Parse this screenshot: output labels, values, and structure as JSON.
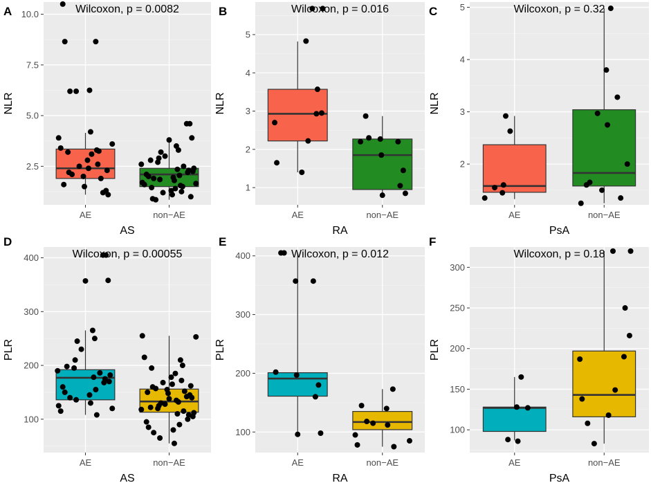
{
  "chart_data": [
    {
      "type": "box",
      "panel": "A",
      "annotation": "Wilcoxon, p = 0.0082",
      "xlabel": "AS",
      "ylabel": "NLR",
      "ylim": [
        0.6,
        10.6
      ],
      "yticks": [
        2.5,
        5.0,
        7.5,
        10.0
      ],
      "ytick_labels": [
        "2.5",
        "5.0",
        "7.5",
        "10.0"
      ],
      "categories": [
        "AE",
        "non−AE"
      ],
      "colors": [
        "#F8634B",
        "#228B22"
      ],
      "boxes": [
        {
          "q1": 1.9,
          "median": 2.4,
          "q3": 3.35,
          "wlo": 1.1,
          "whi": 4.15
        },
        {
          "q1": 1.5,
          "median": 2.1,
          "q3": 2.4,
          "wlo": 0.85,
          "whi": 3.7
        }
      ],
      "points": [
        [
          10.5,
          8.65,
          8.65,
          6.25,
          6.2,
          6.2,
          4.2,
          3.9,
          3.6,
          3.4,
          3.3,
          3.25,
          3.2,
          3.1,
          2.8,
          2.6,
          2.5,
          2.4,
          2.3,
          2.2,
          2.1,
          2.0,
          1.9,
          1.6,
          1.5,
          1.3,
          1.2,
          1.1
        ],
        [
          4.6,
          4.6,
          3.9,
          3.8,
          3.5,
          3.3,
          3.2,
          3.0,
          2.9,
          2.8,
          2.7,
          2.6,
          2.5,
          2.4,
          2.35,
          2.3,
          2.25,
          2.2,
          2.1,
          2.05,
          2.0,
          1.95,
          1.9,
          1.85,
          1.8,
          1.7,
          1.65,
          1.6,
          1.55,
          1.5,
          1.45,
          1.4,
          1.3,
          1.25,
          1.2,
          1.1,
          1.0,
          0.9,
          0.85
        ]
      ]
    },
    {
      "type": "box",
      "panel": "B",
      "annotation": "Wilcoxon, p = 0.016",
      "xlabel": "RA",
      "ylabel": "NLR",
      "ylim": [
        0.55,
        5.85
      ],
      "yticks": [
        1,
        2,
        3,
        4,
        5
      ],
      "ytick_labels": [
        "1",
        "2",
        "3",
        "4",
        "5"
      ],
      "categories": [
        "AE",
        "non−AE"
      ],
      "colors": [
        "#F8634B",
        "#228B22"
      ],
      "boxes": [
        {
          "q1": 2.22,
          "median": 2.93,
          "q3": 3.57,
          "wlo": 1.4,
          "whi": 4.82
        },
        {
          "q1": 0.95,
          "median": 1.85,
          "q3": 2.27,
          "wlo": 0.78,
          "whi": 2.87
        }
      ],
      "points": [
        [
          5.68,
          5.68,
          4.83,
          3.57,
          2.95,
          2.93,
          2.7,
          2.22,
          1.65,
          1.4
        ],
        [
          2.87,
          2.3,
          2.27,
          2.2,
          2.2,
          1.85,
          1.45,
          1.05,
          0.85,
          0.8
        ]
      ]
    },
    {
      "type": "box",
      "panel": "C",
      "annotation": "Wilcoxon, p = 0.32",
      "xlabel": "PsA",
      "ylabel": "NLR",
      "ylim": [
        1.22,
        5.1
      ],
      "yticks": [
        2,
        3,
        4,
        5
      ],
      "ytick_labels": [
        "2",
        "3",
        "4",
        "5"
      ],
      "categories": [
        "AE",
        "non−AE"
      ],
      "colors": [
        "#F8634B",
        "#228B22"
      ],
      "boxes": [
        {
          "q1": 1.46,
          "median": 1.58,
          "q3": 2.37,
          "wlo": 1.33,
          "whi": 2.92
        },
        {
          "q1": 1.58,
          "median": 1.83,
          "q3": 3.04,
          "wlo": 1.25,
          "whi": 4.98
        }
      ],
      "points": [
        [
          2.92,
          2.63,
          1.6,
          1.55,
          1.45,
          1.35
        ],
        [
          4.98,
          3.8,
          3.28,
          2.97,
          2.75,
          2.0,
          1.6,
          1.65,
          1.5,
          1.35,
          1.25
        ]
      ]
    },
    {
      "type": "box",
      "panel": "D",
      "annotation": "Wilcoxon, p = 0.00055",
      "xlabel": "AS",
      "ylabel": "PLR",
      "ylim": [
        38,
        420
      ],
      "yticks": [
        100,
        200,
        300,
        400
      ],
      "ytick_labels": [
        "100",
        "200",
        "300",
        "400"
      ],
      "categories": [
        "AE",
        "non−AE"
      ],
      "colors": [
        "#00AFBB",
        "#E7B800"
      ],
      "boxes": [
        {
          "q1": 136,
          "median": 177,
          "q3": 192,
          "wlo": 108,
          "whi": 265
        },
        {
          "q1": 113,
          "median": 133,
          "q3": 156,
          "wlo": 55,
          "whi": 255
        }
      ],
      "points": [
        [
          405,
          405,
          358,
          357,
          265,
          250,
          245,
          230,
          210,
          198,
          195,
          190,
          186,
          182,
          178,
          175,
          170,
          168,
          160,
          155,
          150,
          145,
          140,
          136,
          130,
          125,
          120,
          115,
          108
        ],
        [
          255,
          253,
          215,
          210,
          200,
          195,
          185,
          178,
          172,
          168,
          165,
          162,
          160,
          157,
          155,
          152,
          150,
          148,
          145,
          142,
          140,
          138,
          135,
          132,
          130,
          128,
          125,
          122,
          120,
          118,
          115,
          112,
          110,
          108,
          105,
          100,
          95,
          90,
          85,
          80,
          75,
          65,
          55
        ]
      ]
    },
    {
      "type": "box",
      "panel": "E",
      "annotation": "Wilcoxon, p = 0.012",
      "xlabel": "RA",
      "ylabel": "PLR",
      "ylim": [
        65,
        415
      ],
      "yticks": [
        100,
        200,
        300,
        400
      ],
      "ytick_labels": [
        "100",
        "200",
        "300",
        "400"
      ],
      "categories": [
        "AE",
        "non−AE"
      ],
      "colors": [
        "#00AFBB",
        "#E7B800"
      ],
      "boxes": [
        {
          "q1": 161,
          "median": 191,
          "q3": 201,
          "wlo": 96,
          "whi": 405
        },
        {
          "q1": 104,
          "median": 117,
          "q3": 135,
          "wlo": 75,
          "whi": 173
        }
      ],
      "points": [
        [
          405,
          405,
          357,
          357,
          202,
          197,
          180,
          160,
          98,
          96
        ],
        [
          173,
          145,
          140,
          118,
          115,
          112,
          95,
          85,
          78,
          75
        ]
      ]
    },
    {
      "type": "box",
      "panel": "F",
      "annotation": "Wilcoxon, p = 0.18",
      "xlabel": "PsA",
      "ylabel": "PLR",
      "ylim": [
        72,
        325
      ],
      "yticks": [
        100,
        150,
        200,
        250,
        300
      ],
      "ytick_labels": [
        "100",
        "150",
        "200",
        "250",
        "300"
      ],
      "categories": [
        "AE",
        "non−AE"
      ],
      "colors": [
        "#00AFBB",
        "#E7B800"
      ],
      "boxes": [
        {
          "q1": 98,
          "median": 127,
          "q3": 128,
          "wlo": 87,
          "whi": 165
        },
        {
          "q1": 116,
          "median": 143,
          "q3": 197,
          "wlo": 83,
          "whi": 320
        }
      ],
      "points": [
        [
          165,
          128,
          127,
          88,
          86
        ],
        [
          320,
          320,
          250,
          216,
          190,
          187,
          149,
          138,
          118,
          108,
          83
        ]
      ]
    }
  ]
}
